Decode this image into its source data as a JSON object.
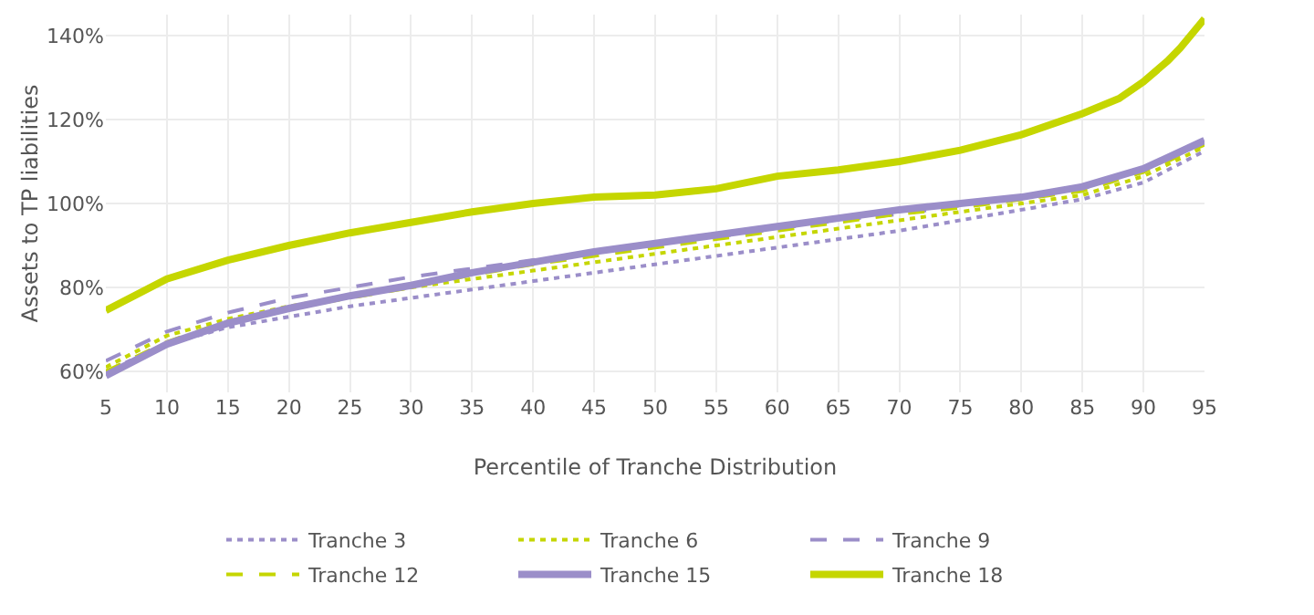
{
  "chart_data": {
    "type": "line",
    "xlabel": "Percentile of Tranche Distribution",
    "ylabel": "Assets to TP liabilities",
    "x": [
      5,
      10,
      15,
      20,
      25,
      30,
      35,
      40,
      45,
      50,
      55,
      60,
      65,
      70,
      75,
      80,
      85,
      90,
      95
    ],
    "xlim": [
      5,
      95
    ],
    "xticks": [
      5,
      10,
      15,
      20,
      25,
      30,
      35,
      40,
      45,
      50,
      55,
      60,
      65,
      70,
      75,
      80,
      85,
      90,
      95
    ],
    "ylim": [
      55,
      145
    ],
    "yticks": [
      {
        "value": 60,
        "label": "60%"
      },
      {
        "value": 80,
        "label": "80%"
      },
      {
        "value": 100,
        "label": "100%"
      },
      {
        "value": 120,
        "label": "120%"
      },
      {
        "value": 140,
        "label": "140%"
      }
    ],
    "grid": true,
    "legend": "bottom",
    "marker": "none",
    "series": [
      {
        "name": "Tranche 3",
        "color": "#9b8ec9",
        "line_style": "dotted",
        "values": [
          60,
          66.5,
          70.5,
          73,
          75.5,
          77.5,
          79.5,
          81.5,
          83.5,
          85.5,
          87.5,
          89.5,
          91.5,
          93.5,
          96,
          98.5,
          101,
          105,
          112.5
        ]
      },
      {
        "name": "Tranche 6",
        "color": "#c5d600",
        "line_style": "dotted",
        "values": [
          61,
          68.5,
          72.5,
          75.5,
          78,
          80,
          82,
          84,
          86,
          88,
          90,
          92,
          94,
          96,
          98,
          100,
          102,
          106.5,
          113.5
        ]
      },
      {
        "name": "Tranche 9",
        "color": "#9b8ec9",
        "line_style": "dashed",
        "values": [
          62.5,
          69.5,
          74,
          77.5,
          80,
          82.5,
          84.5,
          86.5,
          88.5,
          90.5,
          92,
          94,
          96,
          97.5,
          99.5,
          101.5,
          103.5,
          108,
          114.5
        ]
      },
      {
        "name": "Tranche 12",
        "color": "#c5d600",
        "line_style": "dashed",
        "values": [
          60,
          67,
          72,
          75,
          77.5,
          80,
          83,
          85.5,
          87.5,
          89.5,
          91.5,
          93.5,
          95.5,
          97.5,
          99,
          101,
          103,
          107.5,
          114
        ]
      },
      {
        "name": "Tranche 15",
        "color": "#9b8ec9",
        "line_style": "solid",
        "values": [
          59,
          66.5,
          71.5,
          75,
          78,
          80.5,
          83.5,
          86,
          88.5,
          90.5,
          92.5,
          94.5,
          96.5,
          98.5,
          100,
          101.5,
          104,
          108.3,
          115
        ]
      },
      {
        "name": "Tranche 18",
        "color": "#c5d600",
        "line_style": "solid",
        "x": [
          5,
          10,
          15,
          20,
          25,
          30,
          35,
          40,
          45,
          50,
          55,
          60,
          65,
          70,
          75,
          80,
          85,
          88,
          90,
          92,
          93,
          95
        ],
        "values": [
          74.5,
          82,
          86.5,
          90,
          93,
          95.5,
          98,
          100,
          101.5,
          102,
          103.5,
          106.5,
          108,
          110,
          112.7,
          116.4,
          121.4,
          125,
          129,
          134,
          137,
          144
        ]
      }
    ]
  }
}
